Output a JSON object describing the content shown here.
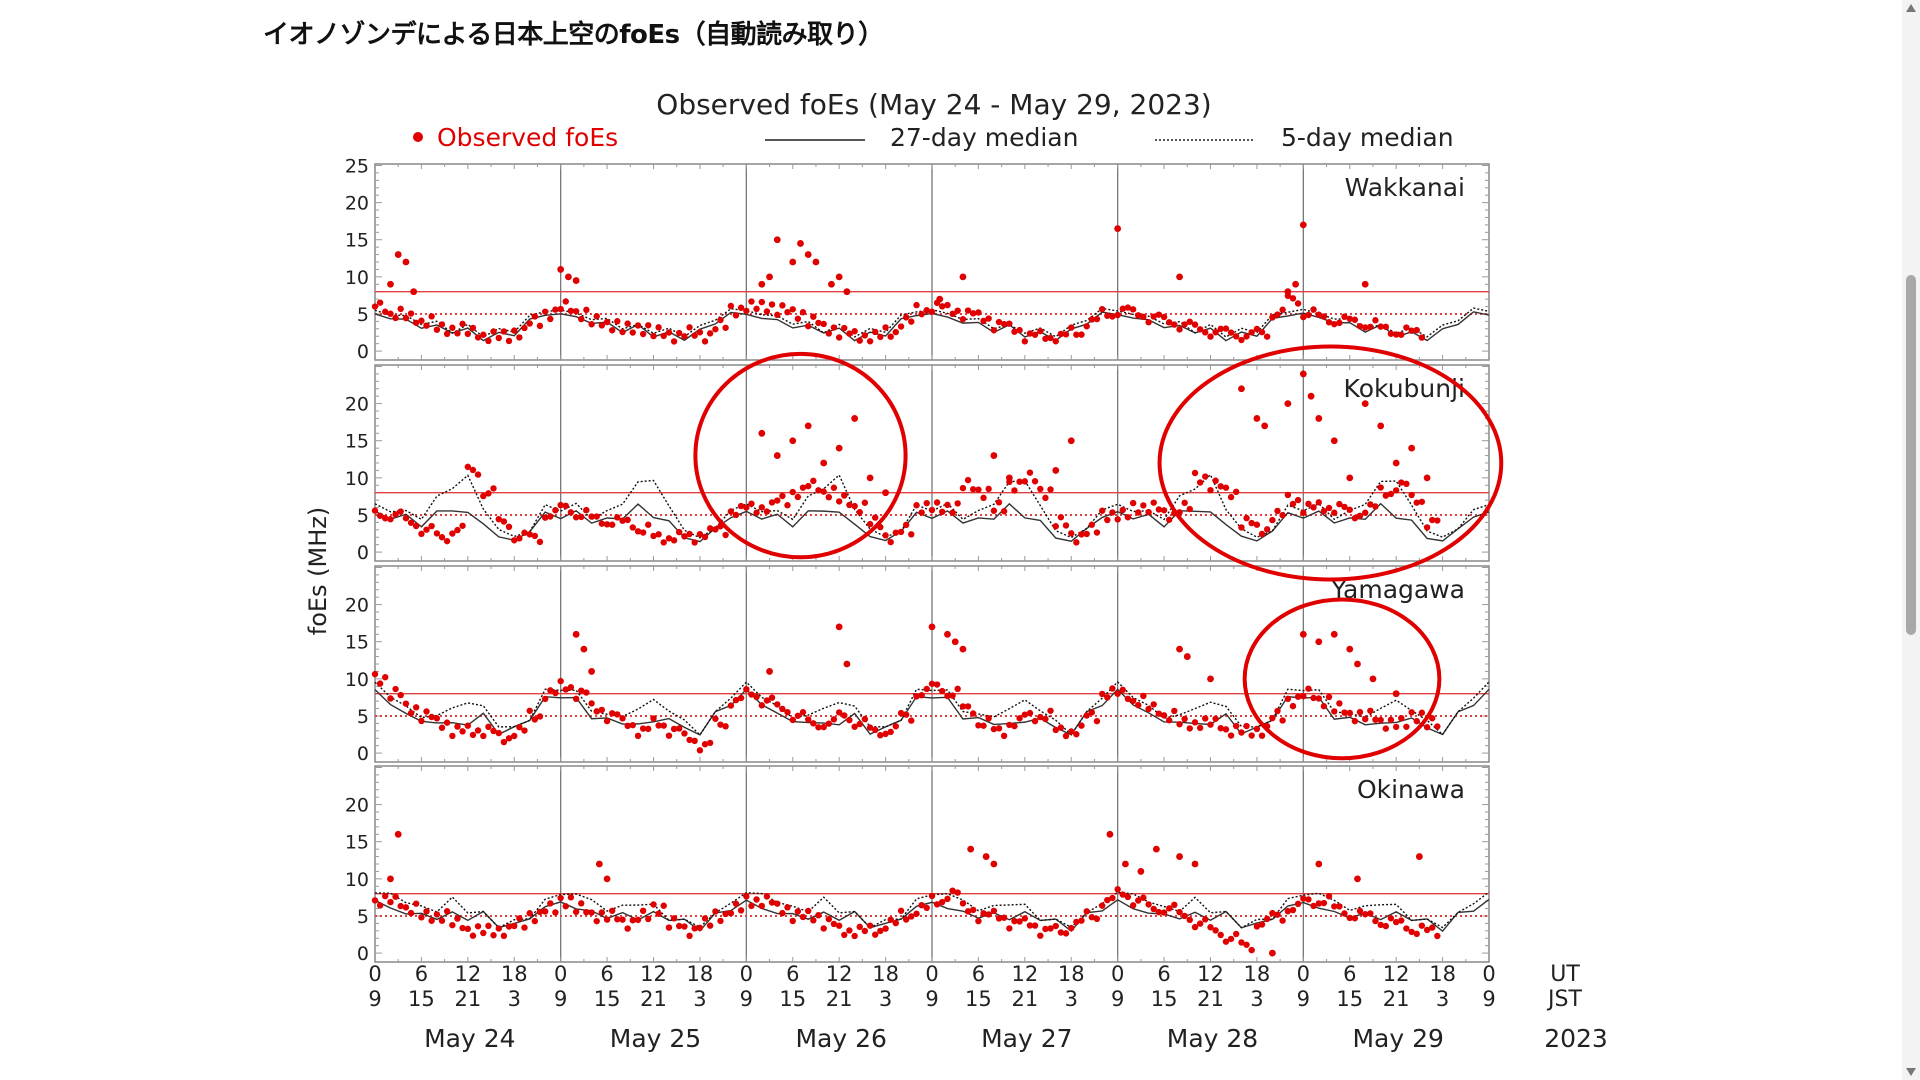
{
  "page": {
    "title": "イオノゾンデによる日本上空のfoEs（自動読み取り）"
  },
  "chart_data": {
    "type": "scatter",
    "title": "Observed foEs (May 24 - May 29, 2023)",
    "ylabel": "foEs (MHz)",
    "ylim": [
      -1.2,
      25.2
    ],
    "x_unit": "hours since May 24 00 UT",
    "xlim": [
      0,
      144
    ],
    "legend": {
      "placement": "top",
      "observed": "Observed foEs",
      "median27": "27-day median",
      "median5": "5-day median"
    },
    "colors": {
      "observed": "#e00000",
      "median27": "#333333",
      "median5": "#111111",
      "reference": "#e04040",
      "annotation": "#e00000"
    },
    "reference_lines": {
      "solid": 8,
      "dotted": 5
    },
    "x_ticks_ut": [
      "0",
      "6",
      "12",
      "18",
      "0",
      "6",
      "12",
      "18",
      "0",
      "6",
      "12",
      "18",
      "0",
      "6",
      "12",
      "18",
      "0",
      "6",
      "12",
      "18",
      "0",
      "6",
      "12",
      "18",
      "0"
    ],
    "x_ticks_jst": [
      "9",
      "15",
      "21",
      "3",
      "9",
      "15",
      "21",
      "3",
      "9",
      "15",
      "21",
      "3",
      "9",
      "15",
      "21",
      "3",
      "9",
      "15",
      "21",
      "3",
      "9",
      "15",
      "21",
      "3",
      "9"
    ],
    "ut_label": "UT",
    "jst_label": "JST",
    "dates": [
      "May 24",
      "May 25",
      "May 26",
      "May 27",
      "May 28",
      "May 29"
    ],
    "year": "2023",
    "panels": [
      {
        "station": "Wakkanai",
        "y_ticks": [
          "25",
          "20",
          "15",
          "10",
          "5",
          "0"
        ],
        "y_tick_values": [
          25,
          20,
          15,
          10,
          5,
          0
        ],
        "observed_2h": [
          6,
          5,
          4.5,
          4,
          3,
          3,
          2.5,
          2,
          2,
          2.5,
          4,
          5,
          6,
          5,
          4,
          3.5,
          3,
          3,
          2.5,
          2,
          2.5,
          2,
          3.5,
          5.5,
          6,
          6,
          5.5,
          5,
          4,
          3,
          2.5,
          2,
          2,
          2.5,
          4,
          5.5,
          6,
          5.5,
          5,
          4.5,
          3.5,
          3,
          2,
          2,
          2,
          2.5,
          4,
          5,
          5.5,
          5,
          4.5,
          4,
          3.5,
          3,
          2.5,
          2.5,
          2,
          2.5,
          5,
          7,
          5,
          4.5,
          4,
          4,
          3.5,
          3,
          2.5,
          2.5
        ],
        "spikes": [
          [
            3,
            13
          ],
          [
            4,
            12
          ],
          [
            5,
            8
          ],
          [
            2,
            9
          ],
          [
            24,
            11
          ],
          [
            25,
            10
          ],
          [
            26,
            9.5
          ],
          [
            50,
            9
          ],
          [
            51,
            10
          ],
          [
            52,
            15
          ],
          [
            54,
            12
          ],
          [
            55,
            14.5
          ],
          [
            56,
            13
          ],
          [
            57,
            12
          ],
          [
            59,
            9
          ],
          [
            60,
            10
          ],
          [
            61,
            8
          ],
          [
            73,
            7
          ],
          [
            76,
            10
          ],
          [
            96,
            16.5
          ],
          [
            104,
            10
          ],
          [
            118,
            8
          ],
          [
            119,
            9
          ],
          [
            120,
            17
          ],
          [
            128,
            9
          ]
        ],
        "median27_2h": [
          5,
          4.5,
          4,
          3.5,
          3,
          3,
          2.5,
          2,
          2,
          2.5,
          4,
          5
        ],
        "median5_2h": [
          5.5,
          5,
          4.5,
          4,
          3.5,
          3,
          3,
          2.5,
          2.5,
          3,
          4.5,
          5.5
        ]
      },
      {
        "station": "Kokubunji",
        "y_ticks": [
          "20",
          "15",
          "10",
          "5",
          "0"
        ],
        "y_tick_values": [
          20,
          15,
          10,
          5,
          0
        ],
        "observed_2h": [
          5,
          5,
          4,
          3,
          2,
          3,
          11,
          8,
          4,
          2,
          2,
          5,
          6,
          5,
          4.5,
          4,
          4,
          3,
          2,
          2,
          2,
          2.5,
          3,
          5.5,
          6,
          6,
          7,
          8,
          9,
          8,
          7,
          6,
          4,
          2,
          3,
          6,
          6,
          6,
          9,
          8,
          6,
          9,
          10,
          8,
          4,
          2,
          3,
          5,
          5,
          6,
          6,
          5,
          6,
          10,
          9,
          8,
          4,
          3,
          5,
          7,
          6,
          6,
          6,
          5,
          6,
          8,
          9,
          7,
          4
        ],
        "spikes": [
          [
            50,
            16
          ],
          [
            52,
            13
          ],
          [
            54,
            15
          ],
          [
            56,
            17
          ],
          [
            58,
            12
          ],
          [
            60,
            14
          ],
          [
            62,
            18
          ],
          [
            64,
            10
          ],
          [
            66,
            8
          ],
          [
            80,
            13
          ],
          [
            82,
            10
          ],
          [
            88,
            11
          ],
          [
            90,
            15
          ],
          [
            112,
            22
          ],
          [
            114,
            18
          ],
          [
            115,
            17
          ],
          [
            118,
            20
          ],
          [
            120,
            24
          ],
          [
            121,
            21
          ],
          [
            122,
            18
          ],
          [
            124,
            15
          ],
          [
            126,
            10
          ],
          [
            128,
            20
          ],
          [
            130,
            17
          ],
          [
            132,
            12
          ],
          [
            134,
            14
          ],
          [
            136,
            10
          ]
        ],
        "median27_2h": [
          5,
          5,
          4.5,
          4,
          5,
          6,
          5,
          4,
          2,
          1.5,
          3,
          5
        ],
        "median5_2h": [
          6,
          6,
          5,
          5,
          7,
          9,
          10,
          6,
          3,
          2,
          3,
          6
        ]
      },
      {
        "station": "Yamagawa",
        "y_ticks": [
          "20",
          "15",
          "10",
          "5",
          "0"
        ],
        "y_tick_values": [
          20,
          15,
          10,
          5,
          0
        ],
        "observed_2h": [
          10,
          8,
          6,
          5,
          4,
          3,
          3,
          3,
          2,
          3,
          5,
          8,
          9,
          8,
          6,
          5,
          4,
          3,
          4,
          3,
          2,
          1,
          4,
          7,
          8,
          7,
          6,
          5,
          4,
          4,
          5,
          4,
          3,
          3,
          5,
          8,
          9,
          8,
          6,
          4,
          3,
          4,
          5,
          5,
          3,
          3,
          5,
          8,
          8,
          7,
          6,
          5,
          4,
          4,
          4,
          3,
          3,
          3,
          5,
          7,
          8,
          7,
          6,
          5,
          5,
          4,
          4,
          5,
          4
        ],
        "spikes": [
          [
            26,
            16
          ],
          [
            27,
            14
          ],
          [
            28,
            11
          ],
          [
            51,
            11
          ],
          [
            60,
            17
          ],
          [
            61,
            12
          ],
          [
            72,
            17
          ],
          [
            74,
            16
          ],
          [
            75,
            15
          ],
          [
            76,
            14
          ],
          [
            104,
            14
          ],
          [
            105,
            13
          ],
          [
            108,
            10
          ],
          [
            120,
            16
          ],
          [
            122,
            15
          ],
          [
            124,
            16
          ],
          [
            126,
            14
          ],
          [
            127,
            12
          ],
          [
            129,
            10
          ],
          [
            132,
            8
          ]
        ],
        "median27_2h": [
          8,
          7,
          5,
          4.5,
          4,
          4,
          4,
          5,
          3,
          3,
          5,
          7
        ],
        "median5_2h": [
          9,
          8,
          6,
          5,
          5,
          6,
          7,
          6,
          4,
          3,
          5,
          8
        ]
      },
      {
        "station": "Okinawa",
        "y_ticks": [
          "20",
          "15",
          "10",
          "5",
          "0"
        ],
        "y_tick_values": [
          20,
          15,
          10,
          5,
          0
        ],
        "observed_2h": [
          7,
          7,
          6,
          5,
          5,
          4,
          3,
          3,
          3,
          4,
          5,
          6,
          7,
          6,
          5,
          5,
          4,
          5,
          6,
          4,
          3,
          4,
          5,
          6,
          7,
          7,
          6,
          5,
          5,
          4,
          3,
          3,
          3,
          4,
          5,
          6,
          7,
          8,
          6,
          5,
          5,
          4,
          4,
          3,
          3,
          4,
          5,
          7,
          8,
          7,
          6,
          6,
          5,
          4,
          3,
          2,
          1,
          4,
          5,
          6,
          7,
          7,
          6,
          5,
          5,
          4,
          4,
          3,
          3
        ],
        "spikes": [
          [
            3,
            16
          ],
          [
            2,
            10
          ],
          [
            29,
            12
          ],
          [
            30,
            10
          ],
          [
            77,
            14
          ],
          [
            79,
            13
          ],
          [
            80,
            12
          ],
          [
            95,
            16
          ],
          [
            97,
            12
          ],
          [
            99,
            11
          ],
          [
            101,
            14
          ],
          [
            104,
            13
          ],
          [
            106,
            12
          ],
          [
            116,
            0
          ],
          [
            122,
            12
          ],
          [
            127,
            10
          ],
          [
            135,
            13
          ]
        ],
        "median27_2h": [
          7,
          6,
          5.5,
          5,
          5,
          5,
          5,
          5,
          4,
          3.5,
          5,
          6
        ],
        "median5_2h": [
          8,
          8,
          7,
          6,
          6,
          7,
          6,
          5,
          4,
          4,
          5,
          7
        ]
      }
    ],
    "annotations": [
      {
        "type": "ellipse",
        "panel": "Kokubunji",
        "x_hours": [
          44,
          66
        ],
        "y_mhz": [
          2,
          24
        ]
      },
      {
        "type": "ellipse",
        "panel": "Kokubunji",
        "x_hours": [
          104,
          143
        ],
        "y_mhz": [
          -1,
          25
        ]
      },
      {
        "type": "ellipse",
        "panel": "Yamagawa",
        "x_hours": [
          115,
          135
        ],
        "y_mhz": [
          2,
          18
        ]
      }
    ]
  }
}
